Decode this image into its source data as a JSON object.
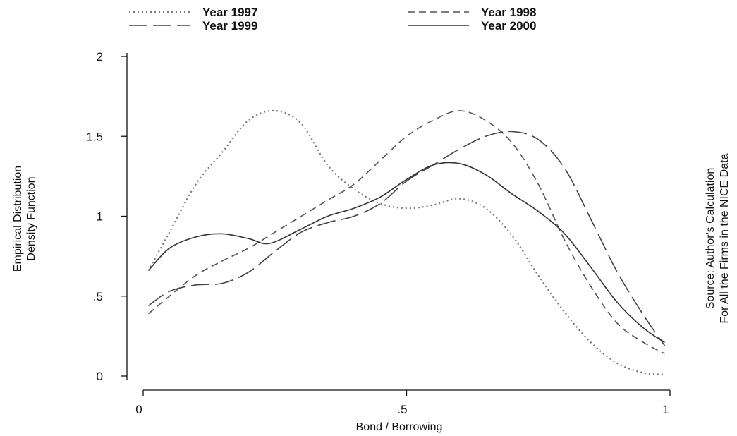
{
  "chart_data": {
    "type": "line",
    "xlabel": "Bond / Borrowing",
    "ylabel": [
      "Empirical Distribution",
      "Density Function"
    ],
    "side_note": [
      "Source: Author's Calculation",
      "For All the Firms in the NICE Data"
    ],
    "xlim": [
      0,
      1
    ],
    "ylim": [
      0,
      2
    ],
    "x_ticks": [
      {
        "value": 0,
        "label": "0"
      },
      {
        "value": 0.5,
        "label": ".5"
      },
      {
        "value": 1,
        "label": "1"
      }
    ],
    "y_ticks": [
      {
        "value": 0,
        "label": "0"
      },
      {
        "value": 0.5,
        "label": ".5"
      },
      {
        "value": 1,
        "label": "1"
      },
      {
        "value": 1.5,
        "label": "1.5"
      },
      {
        "value": 2,
        "label": "2"
      }
    ],
    "grid": false,
    "legend_position": "top",
    "series": [
      {
        "name": "Year 1997",
        "dash": "dotted",
        "color": "#777777",
        "points": [
          [
            0.01,
            0.66
          ],
          [
            0.05,
            0.9
          ],
          [
            0.1,
            1.2
          ],
          [
            0.15,
            1.4
          ],
          [
            0.2,
            1.6
          ],
          [
            0.25,
            1.66
          ],
          [
            0.3,
            1.58
          ],
          [
            0.35,
            1.32
          ],
          [
            0.4,
            1.17
          ],
          [
            0.45,
            1.08
          ],
          [
            0.5,
            1.05
          ],
          [
            0.55,
            1.07
          ],
          [
            0.6,
            1.11
          ],
          [
            0.65,
            1.05
          ],
          [
            0.7,
            0.88
          ],
          [
            0.75,
            0.63
          ],
          [
            0.8,
            0.4
          ],
          [
            0.85,
            0.21
          ],
          [
            0.9,
            0.08
          ],
          [
            0.95,
            0.02
          ],
          [
            0.99,
            0.01
          ]
        ]
      },
      {
        "name": "Year 1998",
        "dash": "short-dash",
        "color": "#555555",
        "points": [
          [
            0.01,
            0.39
          ],
          [
            0.05,
            0.5
          ],
          [
            0.1,
            0.63
          ],
          [
            0.15,
            0.72
          ],
          [
            0.2,
            0.8
          ],
          [
            0.25,
            0.9
          ],
          [
            0.3,
            1.0
          ],
          [
            0.35,
            1.1
          ],
          [
            0.4,
            1.2
          ],
          [
            0.45,
            1.35
          ],
          [
            0.5,
            1.5
          ],
          [
            0.55,
            1.6
          ],
          [
            0.6,
            1.66
          ],
          [
            0.65,
            1.6
          ],
          [
            0.7,
            1.46
          ],
          [
            0.75,
            1.2
          ],
          [
            0.8,
            0.85
          ],
          [
            0.85,
            0.56
          ],
          [
            0.9,
            0.33
          ],
          [
            0.95,
            0.21
          ],
          [
            0.99,
            0.14
          ]
        ]
      },
      {
        "name": "Year 1999",
        "dash": "long-dash",
        "color": "#444444",
        "points": [
          [
            0.01,
            0.44
          ],
          [
            0.05,
            0.53
          ],
          [
            0.1,
            0.57
          ],
          [
            0.15,
            0.58
          ],
          [
            0.2,
            0.65
          ],
          [
            0.25,
            0.78
          ],
          [
            0.3,
            0.9
          ],
          [
            0.35,
            0.96
          ],
          [
            0.4,
            1.0
          ],
          [
            0.45,
            1.08
          ],
          [
            0.5,
            1.22
          ],
          [
            0.55,
            1.32
          ],
          [
            0.6,
            1.42
          ],
          [
            0.65,
            1.5
          ],
          [
            0.7,
            1.53
          ],
          [
            0.75,
            1.48
          ],
          [
            0.8,
            1.3
          ],
          [
            0.85,
            0.98
          ],
          [
            0.9,
            0.65
          ],
          [
            0.95,
            0.38
          ],
          [
            0.99,
            0.19
          ]
        ]
      },
      {
        "name": "Year 2000",
        "dash": "solid",
        "color": "#333333",
        "points": [
          [
            0.01,
            0.66
          ],
          [
            0.05,
            0.8
          ],
          [
            0.1,
            0.87
          ],
          [
            0.15,
            0.89
          ],
          [
            0.2,
            0.86
          ],
          [
            0.24,
            0.83
          ],
          [
            0.3,
            0.92
          ],
          [
            0.35,
            1.0
          ],
          [
            0.4,
            1.05
          ],
          [
            0.45,
            1.12
          ],
          [
            0.5,
            1.23
          ],
          [
            0.55,
            1.32
          ],
          [
            0.6,
            1.33
          ],
          [
            0.65,
            1.26
          ],
          [
            0.7,
            1.14
          ],
          [
            0.75,
            1.03
          ],
          [
            0.8,
            0.89
          ],
          [
            0.85,
            0.68
          ],
          [
            0.9,
            0.46
          ],
          [
            0.95,
            0.3
          ],
          [
            0.99,
            0.21
          ]
        ]
      }
    ]
  }
}
